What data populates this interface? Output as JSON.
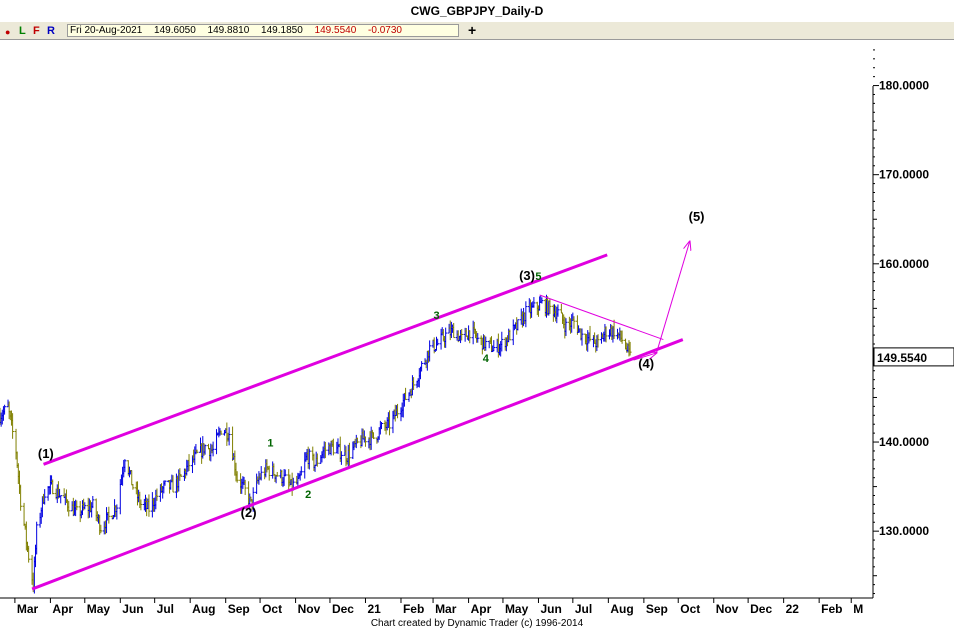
{
  "window": {
    "title": "CWG_GBPJPY_Daily-D"
  },
  "toolbar": {
    "buttons": [
      {
        "label": "L",
        "color": "#008000"
      },
      {
        "label": "F",
        "color": "#c00000"
      },
      {
        "label": "R",
        "color": "#0000c0"
      }
    ],
    "ohlc": {
      "date": "Fri 20-Aug-2021",
      "open": "149.6050",
      "high": "149.8810",
      "low": "149.1850",
      "close": "149.5540",
      "change": "-0.0730"
    },
    "add_label": "+"
  },
  "footer": {
    "credit": "Chart created by Dynamic Trader  (c) 1996-2014"
  },
  "chart_data": {
    "type": "candlestick",
    "title": "CWG_GBPJPY_Daily-D",
    "y_axis": {
      "ticks": [
        "130.0000",
        "140.0000",
        "160.0000",
        "170.0000",
        "180.0000"
      ],
      "tick_values": [
        130,
        140,
        160,
        170,
        180
      ],
      "last_price": "149.5540",
      "last_value": 149.554,
      "range": [
        122.5,
        185.0
      ]
    },
    "x_axis": {
      "labels": [
        "Mar",
        "Apr",
        "May",
        "Jun",
        "Jul",
        "Aug",
        "Sep",
        "Oct",
        "Nov",
        "Dec",
        "21",
        "Feb",
        "Mar",
        "Apr",
        "May",
        "Jun",
        "Jul",
        "Aug",
        "Sep",
        "Oct",
        "Nov",
        "Dec",
        "22",
        "Feb",
        "M"
      ],
      "range": [
        "2020-02-17",
        "2022-03-20"
      ]
    },
    "colors": {
      "up": "#0000e0",
      "down": "#808000",
      "channel": "#e000e0",
      "wave_major": "#000000",
      "wave_minor": "#006400"
    },
    "price_path": [
      [
        "2020-02-17",
        143.0
      ],
      [
        "2020-02-24",
        143.8
      ],
      [
        "2020-03-02",
        139.0
      ],
      [
        "2020-03-06",
        133.5
      ],
      [
        "2020-03-12",
        128.0
      ],
      [
        "2020-03-17",
        124.0
      ],
      [
        "2020-03-20",
        130.0
      ],
      [
        "2020-03-27",
        134.5
      ],
      [
        "2020-04-03",
        135.0
      ],
      [
        "2020-04-10",
        134.0
      ],
      [
        "2020-04-17",
        133.0
      ],
      [
        "2020-04-24",
        132.0
      ],
      [
        "2020-05-01",
        132.5
      ],
      [
        "2020-05-08",
        132.8
      ],
      [
        "2020-05-15",
        130.5
      ],
      [
        "2020-05-22",
        131.5
      ],
      [
        "2020-05-29",
        133.0
      ],
      [
        "2020-06-05",
        138.5
      ],
      [
        "2020-06-12",
        135.0
      ],
      [
        "2020-06-19",
        133.0
      ],
      [
        "2020-06-26",
        132.5
      ],
      [
        "2020-07-03",
        134.0
      ],
      [
        "2020-07-10",
        135.0
      ],
      [
        "2020-07-17",
        135.0
      ],
      [
        "2020-07-24",
        136.0
      ],
      [
        "2020-07-31",
        137.5
      ],
      [
        "2020-08-07",
        138.5
      ],
      [
        "2020-08-14",
        139.5
      ],
      [
        "2020-08-21",
        139.0
      ],
      [
        "2020-08-28",
        141.5
      ],
      [
        "2020-09-04",
        141.0
      ],
      [
        "2020-09-11",
        136.0
      ],
      [
        "2020-09-18",
        134.5
      ],
      [
        "2020-09-23",
        133.0
      ],
      [
        "2020-09-30",
        136.0
      ],
      [
        "2020-10-07",
        137.0
      ],
      [
        "2020-10-14",
        136.5
      ],
      [
        "2020-10-21",
        136.0
      ],
      [
        "2020-10-28",
        135.0
      ],
      [
        "2020-11-04",
        135.5
      ],
      [
        "2020-11-11",
        138.5
      ],
      [
        "2020-11-18",
        137.5
      ],
      [
        "2020-11-25",
        139.0
      ],
      [
        "2020-12-02",
        139.5
      ],
      [
        "2020-12-09",
        139.0
      ],
      [
        "2020-12-16",
        138.5
      ],
      [
        "2020-12-23",
        139.5
      ],
      [
        "2020-12-31",
        140.5
      ],
      [
        "2021-01-08",
        140.5
      ],
      [
        "2021-01-15",
        141.5
      ],
      [
        "2021-01-22",
        142.0
      ],
      [
        "2021-01-29",
        143.5
      ],
      [
        "2021-02-05",
        145.0
      ],
      [
        "2021-02-12",
        146.5
      ],
      [
        "2021-02-19",
        148.5
      ],
      [
        "2021-02-26",
        150.5
      ],
      [
        "2021-03-05",
        151.0
      ],
      [
        "2021-03-12",
        152.0
      ],
      [
        "2021-03-19",
        152.5
      ],
      [
        "2021-03-26",
        151.5
      ],
      [
        "2021-04-02",
        152.5
      ],
      [
        "2021-04-09",
        151.5
      ],
      [
        "2021-04-16",
        151.0
      ],
      [
        "2021-04-23",
        150.5
      ],
      [
        "2021-04-30",
        151.0
      ],
      [
        "2021-05-07",
        152.0
      ],
      [
        "2021-05-14",
        153.0
      ],
      [
        "2021-05-21",
        154.5
      ],
      [
        "2021-05-28",
        155.0
      ],
      [
        "2021-06-04",
        155.5
      ],
      [
        "2021-06-11",
        155.0
      ],
      [
        "2021-06-18",
        154.5
      ],
      [
        "2021-06-25",
        153.0
      ],
      [
        "2021-07-02",
        153.5
      ],
      [
        "2021-07-09",
        152.0
      ],
      [
        "2021-07-16",
        151.5
      ],
      [
        "2021-07-23",
        151.0
      ],
      [
        "2021-07-30",
        152.5
      ],
      [
        "2021-08-06",
        152.5
      ],
      [
        "2021-08-13",
        151.5
      ],
      [
        "2021-08-20",
        149.554
      ]
    ],
    "channel_lines": [
      {
        "from": [
          "2020-03-26",
          137.5
        ],
        "to": [
          "2021-07-31",
          161.0
        ],
        "width": 3
      },
      {
        "from": [
          "2020-03-16",
          123.5
        ],
        "to": [
          "2021-10-05",
          151.5
        ],
        "width": 3
      },
      {
        "from": [
          "2021-06-02",
          156.5
        ],
        "to": [
          "2021-09-18",
          151.5
        ],
        "width": 1
      },
      {
        "from": [
          "2021-08-23",
          149.2
        ],
        "to": [
          "2021-09-12",
          150.0
        ],
        "width": 1,
        "arrow": true
      },
      {
        "from": [
          "2021-09-12",
          150.0
        ],
        "to": [
          "2021-10-11",
          162.5
        ],
        "width": 1,
        "arrow": true
      }
    ],
    "wave_labels": [
      {
        "text": "(1)",
        "x": "2020-03-28",
        "y": 138.2,
        "kind": "major"
      },
      {
        "text": "(2)",
        "x": "2020-09-21",
        "y": 131.6,
        "kind": "major"
      },
      {
        "text": "(3)",
        "x": "2021-05-22",
        "y": 158.2,
        "kind": "major"
      },
      {
        "text": "(4)",
        "x": "2021-09-03",
        "y": 148.3,
        "kind": "major"
      },
      {
        "text": "(5)",
        "x": "2021-10-17",
        "y": 164.8,
        "kind": "major"
      },
      {
        "text": "1",
        "x": "2020-10-10",
        "y": 139.5,
        "kind": "minor"
      },
      {
        "text": "2",
        "x": "2020-11-12",
        "y": 133.7,
        "kind": "minor"
      },
      {
        "text": "3",
        "x": "2021-03-04",
        "y": 153.8,
        "kind": "minor"
      },
      {
        "text": "4",
        "x": "2021-04-16",
        "y": 149.0,
        "kind": "minor"
      },
      {
        "text": "5",
        "x": "2021-06-01",
        "y": 158.2,
        "kind": "minor"
      }
    ]
  }
}
